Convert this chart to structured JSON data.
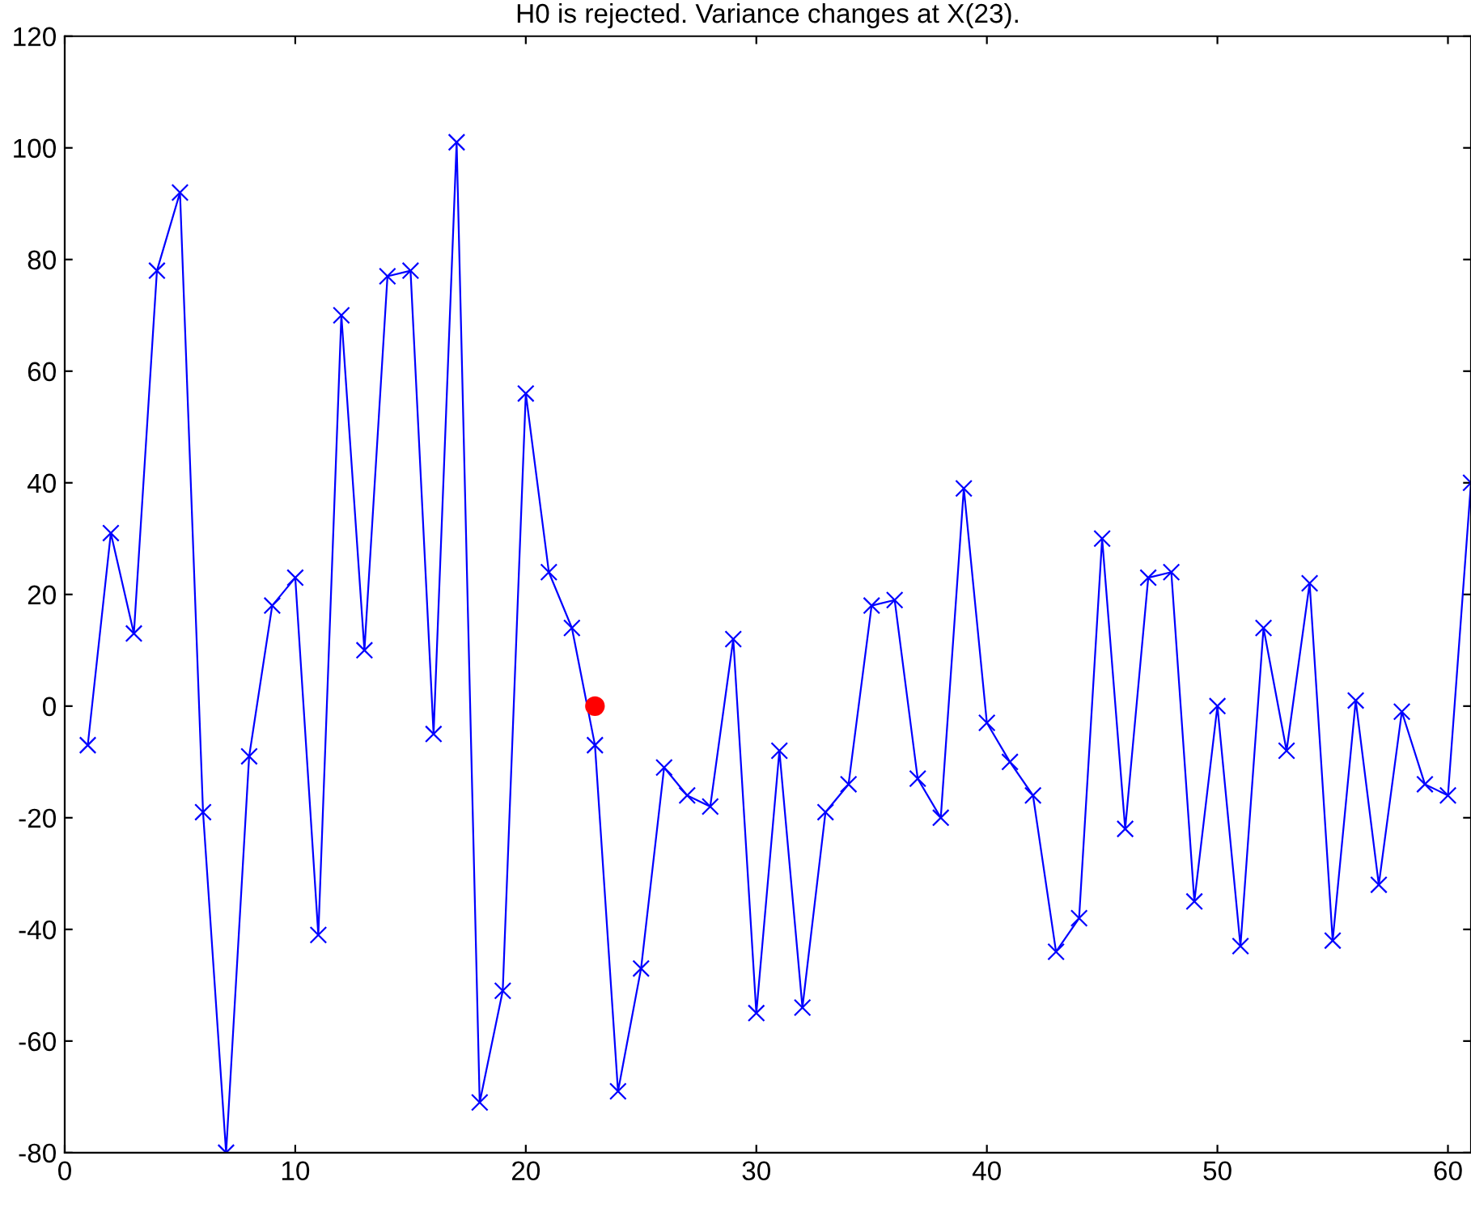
{
  "chart_data": {
    "type": "line",
    "title": "H0 is rejected. Variance changes at X(23).",
    "xlim": [
      0,
      61
    ],
    "xticks": [
      0,
      10,
      20,
      30,
      40,
      50,
      60
    ],
    "ylim": [
      -80,
      120
    ],
    "yticks": [
      -80,
      -60,
      -40,
      -20,
      0,
      20,
      40,
      60,
      80,
      100,
      120
    ],
    "grid": false,
    "legend": false,
    "series": [
      {
        "color": "#0000ff",
        "marker": "cross",
        "line_style": "solid",
        "x": [
          1,
          2,
          3,
          4,
          5,
          6,
          7,
          8,
          9,
          10,
          11,
          12,
          13,
          14,
          15,
          16,
          17,
          18,
          19,
          20,
          21,
          22,
          23,
          24,
          25,
          26,
          27,
          28,
          29,
          30,
          31,
          32,
          33,
          34,
          35,
          36,
          37,
          38,
          39,
          40,
          41,
          42,
          43,
          44,
          45,
          46,
          47,
          48,
          49,
          50,
          51,
          52,
          53,
          54,
          55,
          56,
          57,
          58,
          59,
          60,
          61
        ],
        "values": [
          -7,
          31,
          13,
          78,
          92,
          -19,
          -80,
          -9,
          18,
          23,
          -41,
          70,
          10,
          77,
          78,
          -5,
          101,
          -71,
          -51,
          56,
          24,
          14,
          -7,
          -69,
          -47,
          -11,
          -16,
          -18,
          12,
          -55,
          -8,
          -54,
          -19,
          -14,
          18,
          19,
          -13,
          -20,
          39,
          -3,
          -10,
          -16,
          -44,
          -38,
          30,
          -22,
          23,
          24,
          -35,
          0,
          -43,
          14,
          -8,
          22,
          -42,
          1,
          -32,
          -1,
          -14,
          -16,
          40
        ]
      },
      {
        "type": "scatter",
        "color": "#ff0000",
        "marker": "circle",
        "x": [
          23
        ],
        "values": [
          0
        ]
      }
    ]
  }
}
